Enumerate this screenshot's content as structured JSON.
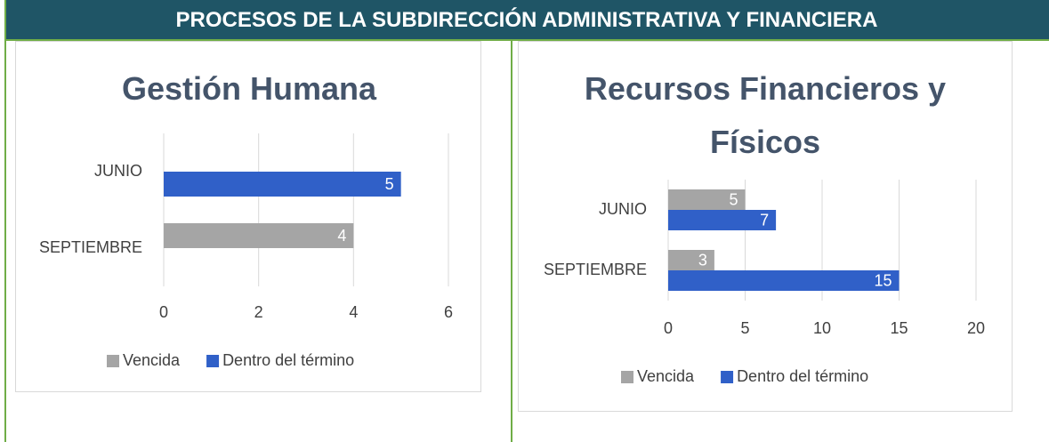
{
  "header": {
    "title": "PROCESOS DE LA SUBDIRECCIÓN ADMINISTRATIVA Y FINANCIERA"
  },
  "chart_data": [
    {
      "type": "bar",
      "orientation": "horizontal",
      "title": "Gestión Humana",
      "categories": [
        "JUNIO",
        "SEPTIEMBRE"
      ],
      "series": [
        {
          "name": "Vencida",
          "color": "#a5a5a5",
          "values": [
            null,
            4
          ]
        },
        {
          "name": "Dentro del término",
          "color": "#3060c8",
          "values": [
            5,
            null
          ]
        }
      ],
      "xlim": [
        0,
        6
      ],
      "xticks": [
        0,
        2,
        4,
        6
      ],
      "grid": true,
      "legend": "bottom"
    },
    {
      "type": "bar",
      "orientation": "horizontal",
      "title": "Recursos Financieros y Físicos",
      "categories": [
        "JUNIO",
        "SEPTIEMBRE"
      ],
      "series": [
        {
          "name": "Vencida",
          "color": "#a5a5a5",
          "values": [
            5,
            3
          ]
        },
        {
          "name": "Dentro del término",
          "color": "#3060c8",
          "values": [
            7,
            15
          ]
        }
      ],
      "xlim": [
        0,
        20
      ],
      "xticks": [
        0,
        5,
        10,
        15,
        20
      ],
      "grid": true,
      "legend": "bottom"
    }
  ]
}
